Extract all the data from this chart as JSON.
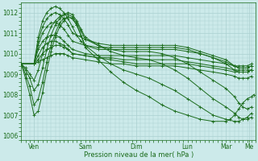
{
  "bg_color": "#cceaea",
  "grid_color": "#aad0d0",
  "line_color": "#1a6b1a",
  "marker_color": "#1a6b1a",
  "xlabel": "Pression niveau de la mer( hPa )",
  "xlabel_color": "#1a6b1a",
  "tick_color": "#1a6b1a",
  "yticks": [
    1006,
    1007,
    1008,
    1009,
    1010,
    1011,
    1012
  ],
  "ylim": [
    1005.8,
    1012.5
  ],
  "xlim": [
    0,
    110
  ],
  "xtick_positions": [
    6,
    30,
    54,
    78,
    96,
    107
  ],
  "xtick_labels": [
    "Ven",
    "Sam",
    "Dim",
    "Lun",
    "Mar",
    "Me"
  ],
  "series": [
    {
      "x": [
        0,
        6,
        8,
        10,
        12,
        14,
        16,
        18,
        20,
        22,
        24,
        30,
        36,
        42,
        48,
        54,
        60,
        66,
        72,
        78,
        84,
        90,
        96,
        100,
        102,
        104,
        106,
        108
      ],
      "y": [
        1009.5,
        1009.5,
        1009.6,
        1009.7,
        1009.8,
        1009.9,
        1010.0,
        1010.0,
        1010.0,
        1009.9,
        1009.8,
        1009.7,
        1009.6,
        1009.5,
        1009.5,
        1009.4,
        1009.4,
        1009.4,
        1009.4,
        1009.3,
        1009.2,
        1009.1,
        1009.0,
        1008.9,
        1008.8,
        1008.8,
        1008.8,
        1008.9
      ]
    },
    {
      "x": [
        0,
        6,
        8,
        10,
        12,
        14,
        16,
        18,
        20,
        22,
        24,
        30,
        36,
        42,
        48,
        54,
        60,
        66,
        72,
        78,
        84,
        90,
        96,
        100,
        102,
        104,
        106,
        108
      ],
      "y": [
        1009.5,
        1009.5,
        1009.7,
        1010.0,
        1010.2,
        1010.3,
        1010.4,
        1010.4,
        1010.3,
        1010.2,
        1010.0,
        1009.9,
        1009.8,
        1009.7,
        1009.6,
        1009.5,
        1009.5,
        1009.5,
        1009.5,
        1009.5,
        1009.4,
        1009.3,
        1009.2,
        1009.1,
        1009.1,
        1009.1,
        1009.1,
        1009.2
      ]
    },
    {
      "x": [
        0,
        6,
        8,
        10,
        12,
        14,
        16,
        18,
        20,
        22,
        24,
        30,
        36,
        42,
        48,
        54,
        60,
        66,
        72,
        78,
        84,
        90,
        96,
        100,
        102,
        104,
        106,
        108
      ],
      "y": [
        1009.5,
        1009.5,
        1009.9,
        1010.3,
        1010.5,
        1010.6,
        1010.6,
        1010.5,
        1010.4,
        1010.2,
        1010.0,
        1009.9,
        1009.8,
        1009.8,
        1009.7,
        1009.7,
        1009.7,
        1009.7,
        1009.7,
        1009.6,
        1009.5,
        1009.4,
        1009.3,
        1009.2,
        1009.2,
        1009.2,
        1009.2,
        1009.2
      ]
    },
    {
      "x": [
        0,
        6,
        8,
        10,
        12,
        14,
        16,
        18,
        20,
        22,
        24,
        30,
        36,
        42,
        48,
        54,
        60,
        66,
        72,
        78,
        84,
        90,
        96,
        100,
        102,
        104,
        106,
        108
      ],
      "y": [
        1009.5,
        1009.5,
        1010.2,
        1010.6,
        1010.8,
        1010.9,
        1010.9,
        1010.8,
        1010.6,
        1010.4,
        1010.2,
        1010.0,
        1009.9,
        1009.9,
        1009.9,
        1009.9,
        1009.9,
        1009.9,
        1009.9,
        1009.8,
        1009.7,
        1009.6,
        1009.5,
        1009.4,
        1009.3,
        1009.3,
        1009.3,
        1009.4
      ]
    },
    {
      "x": [
        0,
        6,
        8,
        10,
        12,
        14,
        16,
        18,
        20,
        22,
        24,
        30,
        36,
        42,
        48,
        54,
        60,
        66,
        72,
        78,
        84,
        90,
        96,
        100,
        102,
        104,
        106,
        108
      ],
      "y": [
        1009.5,
        1009.5,
        1010.4,
        1011.0,
        1011.3,
        1011.5,
        1011.5,
        1011.4,
        1011.2,
        1010.9,
        1010.6,
        1010.4,
        1010.2,
        1010.2,
        1010.2,
        1010.2,
        1010.2,
        1010.2,
        1010.2,
        1010.1,
        1010.0,
        1009.8,
        1009.6,
        1009.4,
        1009.4,
        1009.4,
        1009.4,
        1009.5
      ]
    },
    {
      "x": [
        0,
        6,
        8,
        10,
        12,
        14,
        16,
        18,
        20,
        22,
        24,
        30,
        36,
        42,
        48,
        54,
        60,
        66,
        72,
        78,
        84,
        90,
        96,
        100,
        102,
        104,
        106,
        108
      ],
      "y": [
        1009.5,
        1009.5,
        1010.6,
        1011.3,
        1011.7,
        1011.9,
        1012.0,
        1011.9,
        1011.7,
        1011.4,
        1011.0,
        1010.7,
        1010.5,
        1010.4,
        1010.4,
        1010.4,
        1010.4,
        1010.4,
        1010.4,
        1010.3,
        1010.1,
        1009.9,
        1009.7,
        1009.4,
        1009.3,
        1009.3,
        1009.3,
        1009.4
      ]
    },
    {
      "x": [
        0,
        6,
        8,
        10,
        12,
        14,
        16,
        18,
        20,
        22,
        24,
        26,
        28,
        30,
        36,
        42,
        48,
        54,
        60,
        66,
        72,
        78,
        84,
        90,
        96,
        100,
        102,
        104,
        106,
        108
      ],
      "y": [
        1009.5,
        1009.5,
        1010.8,
        1011.6,
        1012.0,
        1012.2,
        1012.3,
        1012.2,
        1012.0,
        1011.7,
        1011.3,
        1010.9,
        1010.6,
        1010.4,
        1010.3,
        1010.3,
        1010.3,
        1010.3,
        1010.3,
        1010.3,
        1010.3,
        1010.2,
        1010.0,
        1009.8,
        1009.5,
        1009.2,
        1009.1,
        1009.1,
        1009.1,
        1009.2
      ]
    },
    {
      "x": [
        0,
        2,
        4,
        6,
        8,
        10,
        12,
        14,
        16,
        18,
        20,
        22,
        24,
        26,
        28,
        30,
        36,
        42,
        48,
        54,
        60,
        66,
        72,
        78,
        84,
        90,
        96,
        100,
        102,
        104,
        106,
        108
      ],
      "y": [
        1009.5,
        1009.3,
        1009.0,
        1008.7,
        1009.2,
        1010.0,
        1010.8,
        1011.3,
        1011.6,
        1011.8,
        1011.9,
        1011.9,
        1011.8,
        1011.5,
        1011.1,
        1010.7,
        1010.4,
        1010.2,
        1010.1,
        1010.1,
        1010.1,
        1010.0,
        1009.8,
        1009.5,
        1009.1,
        1008.7,
        1008.3,
        1007.9,
        1007.6,
        1007.4,
        1007.3,
        1007.4
      ]
    },
    {
      "x": [
        0,
        2,
        4,
        6,
        8,
        10,
        12,
        14,
        16,
        18,
        20,
        22,
        24,
        26,
        28,
        30,
        36,
        42,
        48,
        54,
        60,
        66,
        72,
        78,
        84,
        90,
        96,
        100,
        102,
        104,
        106,
        108
      ],
      "y": [
        1009.5,
        1009.2,
        1008.8,
        1008.2,
        1008.5,
        1009.3,
        1010.2,
        1010.9,
        1011.4,
        1011.7,
        1011.9,
        1012.0,
        1011.9,
        1011.6,
        1011.2,
        1010.8,
        1010.4,
        1010.1,
        1009.9,
        1009.8,
        1009.7,
        1009.5,
        1009.2,
        1008.8,
        1008.3,
        1007.8,
        1007.4,
        1007.1,
        1006.9,
        1006.8,
        1006.8,
        1006.9
      ]
    },
    {
      "x": [
        0,
        2,
        4,
        6,
        8,
        10,
        12,
        14,
        16,
        18,
        20,
        22,
        24,
        26,
        28,
        30,
        36,
        42,
        48,
        54,
        60,
        66,
        72,
        78,
        84,
        90,
        96,
        100,
        102,
        104,
        106,
        108
      ],
      "y": [
        1009.5,
        1009.0,
        1008.4,
        1007.5,
        1007.8,
        1008.6,
        1009.6,
        1010.4,
        1011.0,
        1011.5,
        1011.7,
        1011.8,
        1011.7,
        1011.4,
        1010.9,
        1010.4,
        1009.9,
        1009.5,
        1009.2,
        1009.0,
        1008.8,
        1008.5,
        1008.2,
        1007.8,
        1007.4,
        1007.0,
        1006.8,
        1006.7,
        1006.7,
        1006.8,
        1006.9,
        1007.1
      ]
    },
    {
      "x": [
        0,
        2,
        4,
        6,
        8,
        10,
        12,
        14,
        16,
        18,
        20,
        22,
        24,
        26,
        28,
        30,
        36,
        42,
        48,
        54,
        60,
        66,
        72,
        78,
        84,
        90,
        96,
        98,
        100,
        102,
        104,
        106,
        108,
        109
      ],
      "y": [
        1009.5,
        1008.8,
        1008.0,
        1007.0,
        1007.2,
        1008.1,
        1009.2,
        1010.1,
        1010.8,
        1011.3,
        1011.6,
        1011.8,
        1011.7,
        1011.4,
        1010.9,
        1010.3,
        1009.7,
        1009.1,
        1008.6,
        1008.2,
        1007.9,
        1007.5,
        1007.2,
        1007.0,
        1006.8,
        1006.7,
        1006.7,
        1006.8,
        1007.0,
        1007.3,
        1007.6,
        1007.8,
        1007.9,
        1008.0
      ]
    }
  ]
}
